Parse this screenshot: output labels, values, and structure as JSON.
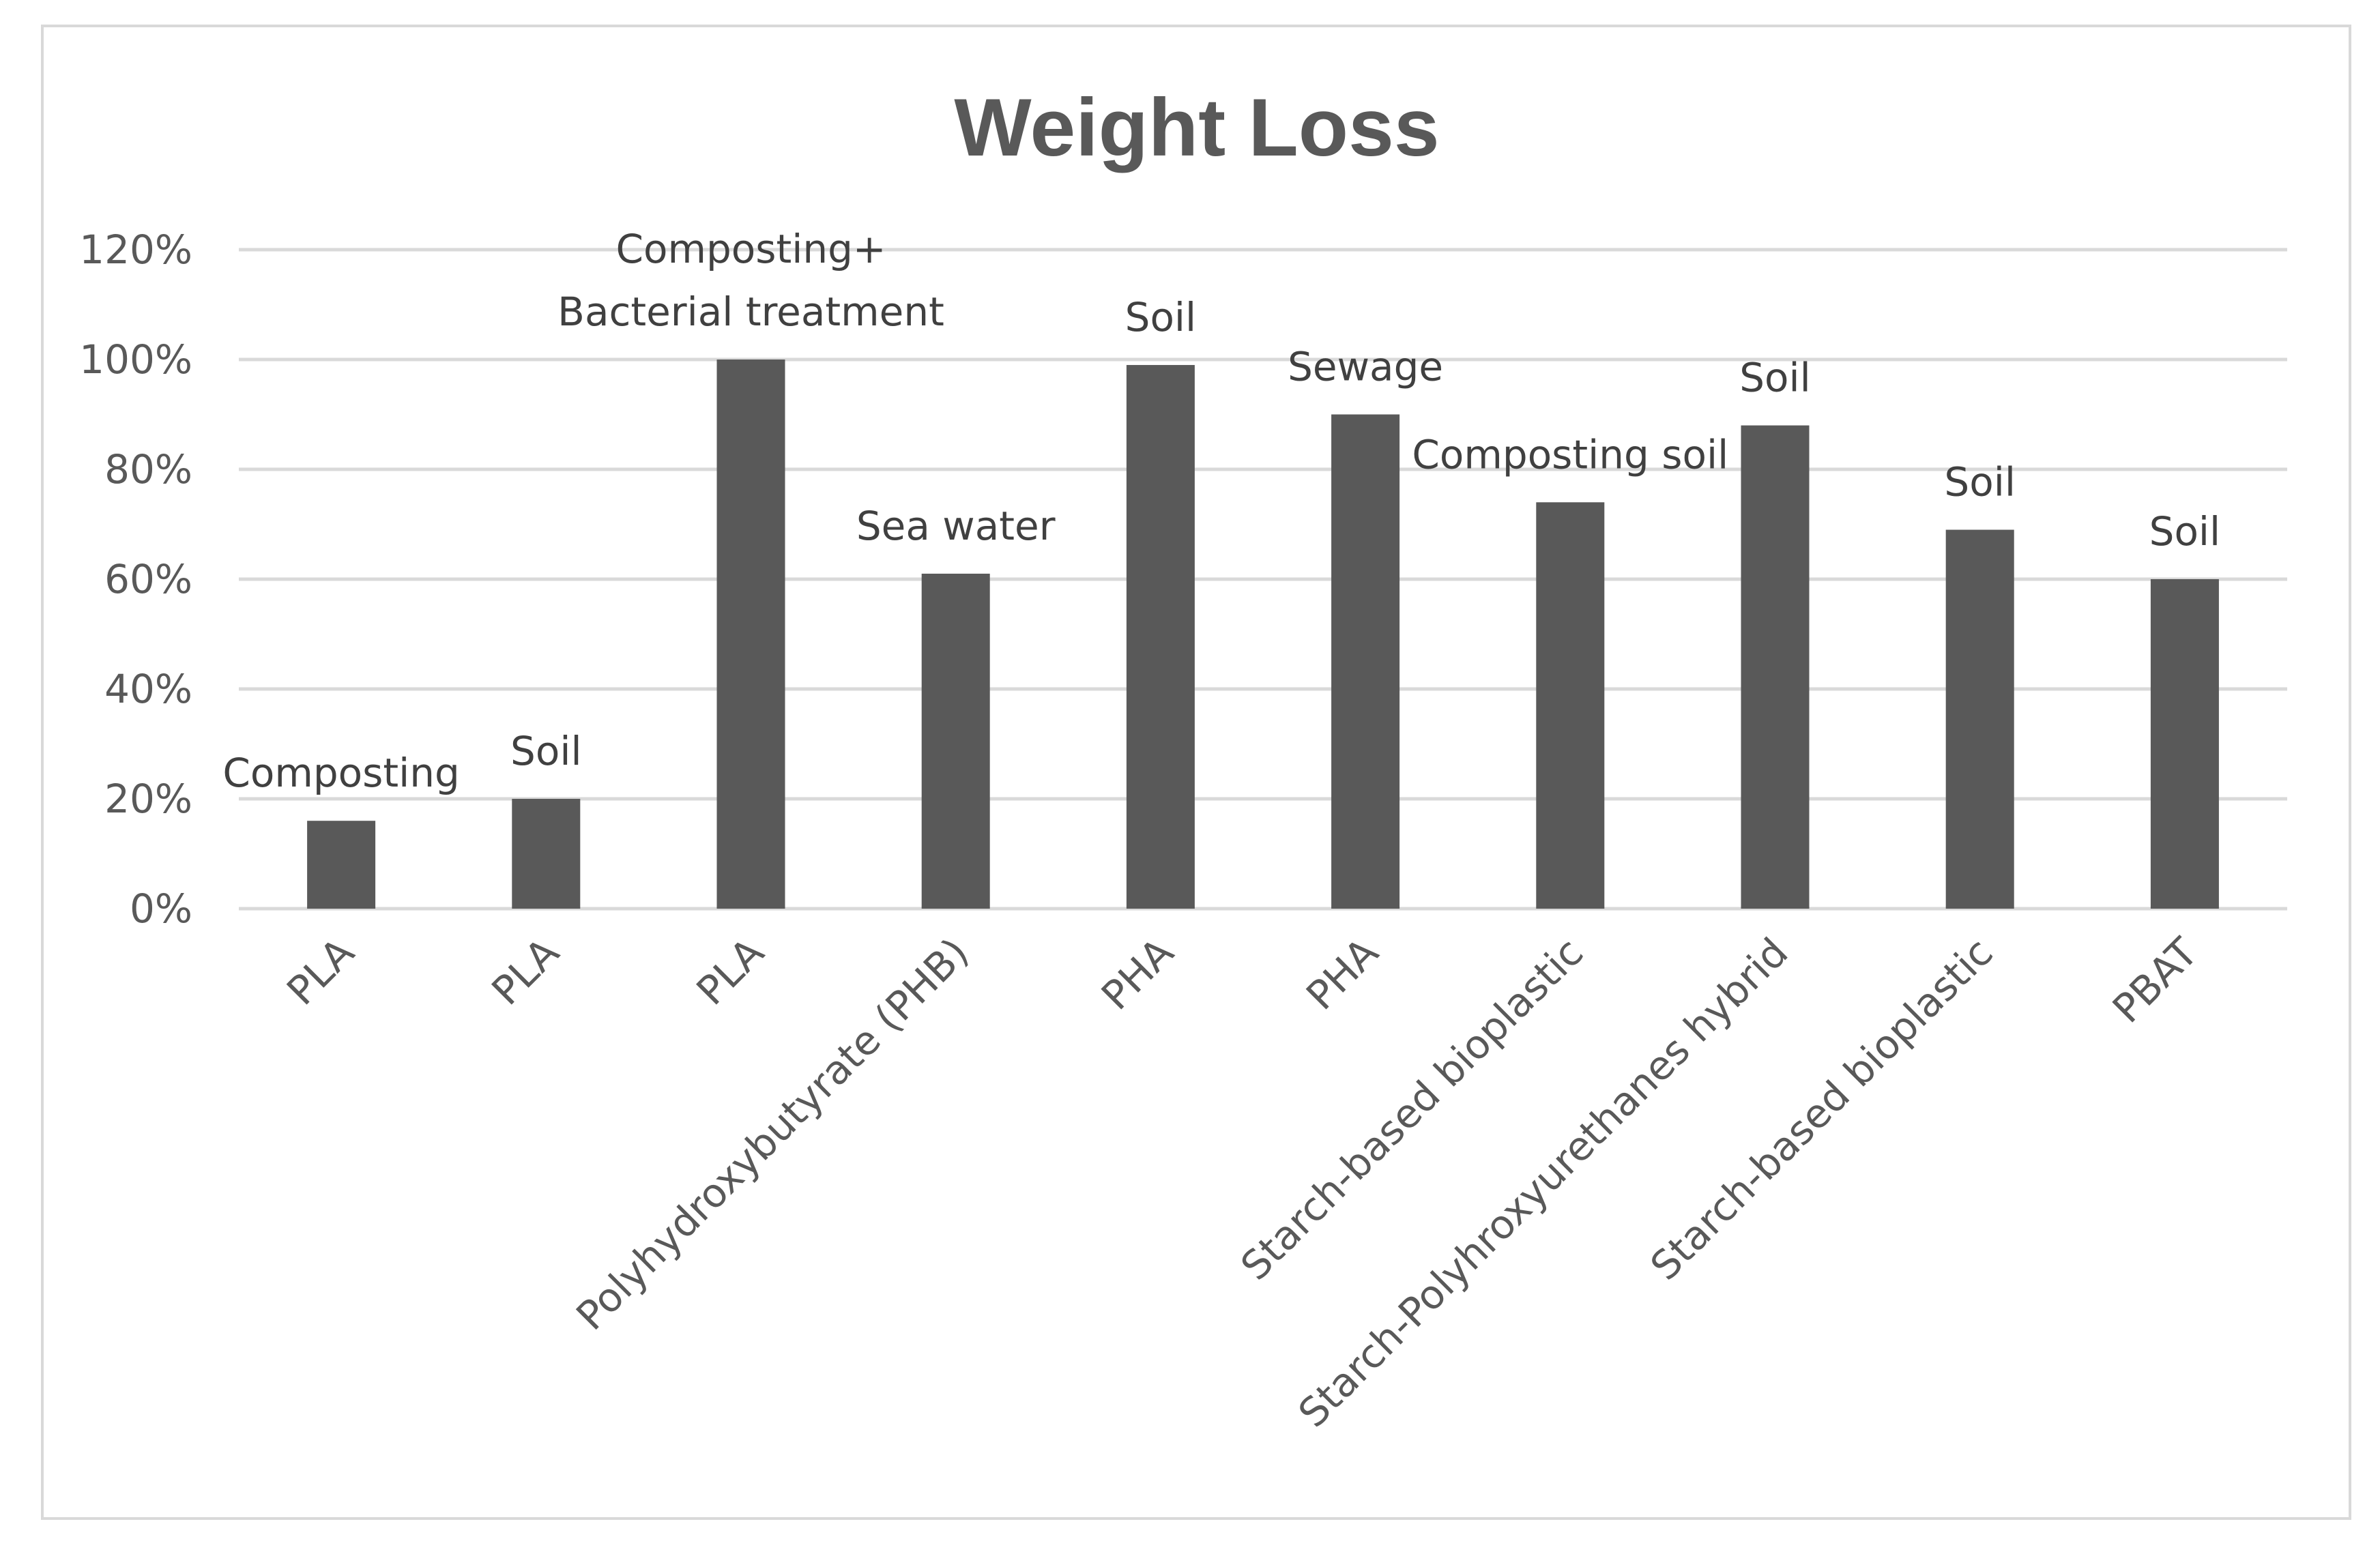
{
  "chart_data": {
    "type": "bar",
    "title": "Weight Loss",
    "xlabel": "",
    "ylabel": "",
    "ylim": [
      0,
      1.2
    ],
    "y_ticks": [
      "0%",
      "20%",
      "40%",
      "60%",
      "80%",
      "100%",
      "120%"
    ],
    "grid": true,
    "categories": [
      "PLA",
      "PLA",
      "PLA",
      "Polyhydroxybutyrate (PHB)",
      "PHA",
      "PHA",
      "Starch-based bioplastic",
      "Starch-Polyhroxyurethanes hybrid",
      "Starch-based bioplastic",
      "PBAT"
    ],
    "values": [
      0.16,
      0.2,
      1.0,
      0.61,
      0.99,
      0.9,
      0.74,
      0.88,
      0.69,
      0.6
    ],
    "annotations": [
      [
        "Composting"
      ],
      [
        "Soil"
      ],
      [
        "Composting+",
        "Bacterial treatment"
      ],
      [
        "Sea water"
      ],
      [
        "Soil"
      ],
      [
        "Sewage"
      ],
      [
        "Composting soil"
      ],
      [
        "Soil"
      ],
      [
        "Soil"
      ],
      [
        "Soil"
      ]
    ],
    "colors": {
      "bar": "#595959",
      "grid": "#d9d9d9",
      "text": "#595959",
      "frame": "#d9d9d9"
    }
  }
}
